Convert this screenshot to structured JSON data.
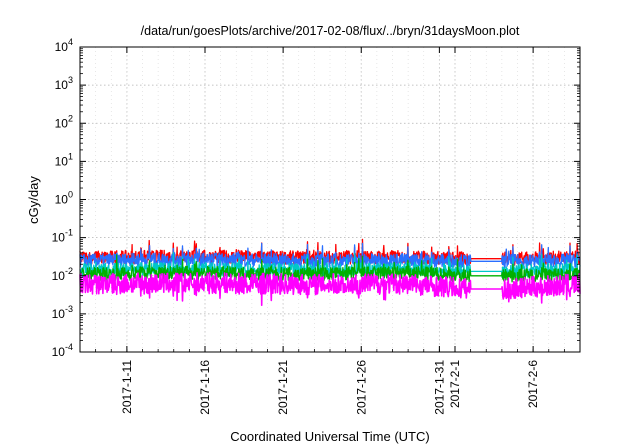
{
  "chart_data": {
    "type": "line",
    "title": "/data/run/goesPlots/archive/2017-02-08/flux/../bryn/31daysMoon.plot",
    "xlabel": "Coordinated Universal Time (UTC)",
    "ylabel": "cGy/day",
    "yscale": "log",
    "ylim": [
      0.0001,
      10000
    ],
    "y_ticks": [
      {
        "value": 0.0001,
        "base": "10",
        "exp": "-4"
      },
      {
        "value": 0.001,
        "base": "10",
        "exp": "-3"
      },
      {
        "value": 0.01,
        "base": "10",
        "exp": "-2"
      },
      {
        "value": 0.1,
        "base": "10",
        "exp": "-1"
      },
      {
        "value": 1,
        "base": "10",
        "exp": "0"
      },
      {
        "value": 10,
        "base": "10",
        "exp": "1"
      },
      {
        "value": 100,
        "base": "10",
        "exp": "2"
      },
      {
        "value": 1000,
        "base": "10",
        "exp": "3"
      },
      {
        "value": 10000,
        "base": "10",
        "exp": "4"
      }
    ],
    "xlim": [
      "2017-01-08",
      "2017-02-09"
    ],
    "x_ticks": [
      "2017-1-11",
      "2017-1-16",
      "2017-1-21",
      "2017-1-26",
      "2017-1-31",
      "2017-2-1",
      "2017-2-6"
    ],
    "grid": true,
    "data_gap": [
      "2017-02-02",
      "2017-02-04"
    ],
    "series": [
      {
        "color": "#ff0000",
        "x": [
          "2017-01-08",
          "2017-01-15",
          "2017-01-22",
          "2017-01-29",
          "2017-02-02",
          "2017-02-04",
          "2017-02-09"
        ],
        "values": [
          0.03,
          0.032,
          0.03,
          0.031,
          0.028,
          0.028,
          0.03
        ]
      },
      {
        "color": "#2a6fff",
        "x": [
          "2017-01-08",
          "2017-01-15",
          "2017-01-22",
          "2017-01-29",
          "2017-02-02",
          "2017-02-04",
          "2017-02-09"
        ],
        "values": [
          0.025,
          0.027,
          0.025,
          0.026,
          0.024,
          0.024,
          0.025
        ]
      },
      {
        "color": "#00c8c8",
        "x": [
          "2017-01-08",
          "2017-01-15",
          "2017-01-22",
          "2017-01-29",
          "2017-02-02",
          "2017-02-04",
          "2017-02-09"
        ],
        "values": [
          0.014,
          0.015,
          0.014,
          0.015,
          0.013,
          0.013,
          0.014
        ]
      },
      {
        "color": "#00b000",
        "x": [
          "2017-01-08",
          "2017-01-15",
          "2017-01-22",
          "2017-01-29",
          "2017-02-02",
          "2017-02-04",
          "2017-02-09"
        ],
        "values": [
          0.011,
          0.012,
          0.011,
          0.012,
          0.01,
          0.01,
          0.011
        ]
      },
      {
        "color": "#ff00ff",
        "x": [
          "2017-01-08",
          "2017-01-15",
          "2017-01-22",
          "2017-01-29",
          "2017-02-02",
          "2017-02-04",
          "2017-02-09"
        ],
        "values": [
          0.006,
          0.0065,
          0.006,
          0.0062,
          0.0045,
          0.0045,
          0.006
        ]
      }
    ]
  }
}
